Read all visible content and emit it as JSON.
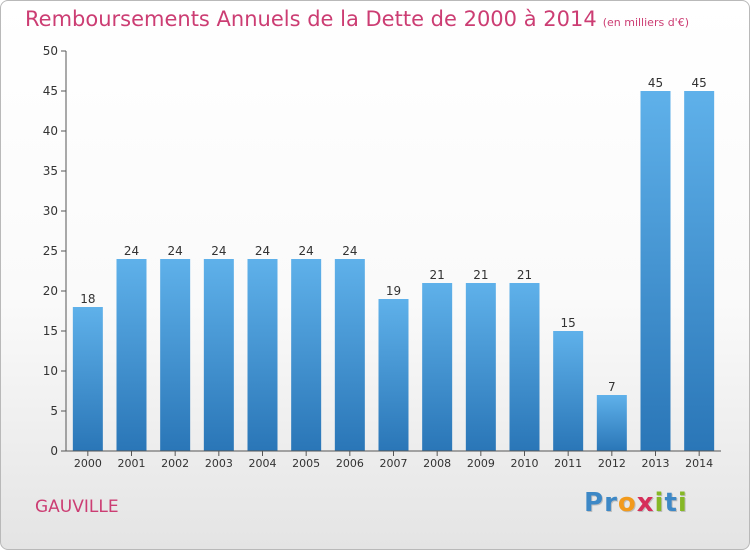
{
  "chart_data": {
    "type": "bar",
    "title": "Remboursements Annuels de la Dette de 2000 à 2014",
    "subtitle": "(en milliers d'€)",
    "categories": [
      "2000",
      "2001",
      "2002",
      "2003",
      "2004",
      "2005",
      "2006",
      "2007",
      "2008",
      "2009",
      "2010",
      "2011",
      "2012",
      "2013",
      "2014"
    ],
    "values": [
      18,
      24,
      24,
      24,
      24,
      24,
      24,
      19,
      21,
      21,
      21,
      15,
      7,
      45,
      45
    ],
    "ylim": [
      0,
      50
    ],
    "yticks": [
      0,
      5,
      10,
      15,
      20,
      25,
      30,
      35,
      40,
      45,
      50
    ],
    "xlabel": "",
    "ylabel": "",
    "grid": false
  },
  "footer": {
    "city": "GAUVILLE",
    "logo_letters": [
      {
        "char": "P",
        "color": "#3d88c6"
      },
      {
        "char": "r",
        "color": "#3d88c6"
      },
      {
        "char": "o",
        "color": "#f29a1c"
      },
      {
        "char": "x",
        "color": "#d62f5a"
      },
      {
        "char": "i",
        "color": "#86b826"
      },
      {
        "char": "t",
        "color": "#3d88c6"
      },
      {
        "char": "i",
        "color": "#86b826"
      }
    ]
  },
  "colors": {
    "accent": "#cc3d73",
    "bar_top": "#5fb1ea",
    "bar_bottom": "#2a76b7",
    "axis": "#333333"
  }
}
